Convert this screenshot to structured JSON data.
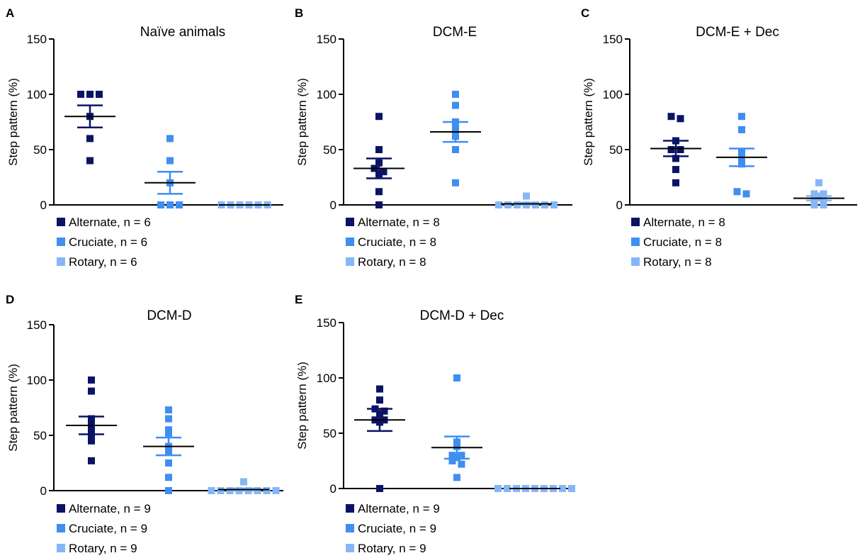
{
  "colors": {
    "Alternate": "#0b1464",
    "Cruciate": "#3f8ef2",
    "Rotary": "#86b6f6"
  },
  "chart_data": [
    {
      "type": "scatter",
      "letter": "A",
      "title": "Naïve animals",
      "ylabel": "Step pattern (%)",
      "ylim": [
        0,
        150
      ],
      "yticks": [
        "0",
        "50",
        "100",
        "150"
      ],
      "categories": [
        "Alternate",
        "Cruciate",
        "Rotary"
      ],
      "series": [
        {
          "name": "Alternate",
          "legend": "Alternate, n = 6",
          "mean": 80,
          "sem": 10,
          "points": [
            100,
            100,
            100,
            80,
            60,
            40
          ]
        },
        {
          "name": "Cruciate",
          "legend": "Cruciate, n = 6",
          "mean": 20,
          "sem": 10,
          "points": [
            60,
            40,
            20,
            0,
            0,
            0
          ]
        },
        {
          "name": "Rotary",
          "legend": "Rotary, n = 6",
          "mean": 0,
          "sem": 0,
          "points": [
            0,
            0,
            0,
            0,
            0,
            0
          ]
        }
      ]
    },
    {
      "type": "scatter",
      "letter": "B",
      "title": "DCM-E",
      "ylabel": "Step pattern (%)",
      "ylim": [
        0,
        150
      ],
      "yticks": [
        "0",
        "50",
        "100",
        "150"
      ],
      "categories": [
        "Alternate",
        "Cruciate",
        "Rotary"
      ],
      "series": [
        {
          "name": "Alternate",
          "legend": "Alternate, n = 8",
          "mean": 33,
          "sem": 9,
          "points": [
            80,
            50,
            38,
            33,
            30,
            28,
            12,
            0
          ]
        },
        {
          "name": "Cruciate",
          "legend": "Cruciate, n = 8",
          "mean": 66,
          "sem": 9,
          "points": [
            100,
            90,
            75,
            70,
            68,
            62,
            50,
            20
          ]
        },
        {
          "name": "Rotary",
          "legend": "Rotary, n = 8",
          "mean": 1,
          "sem": 1,
          "points": [
            8,
            0,
            0,
            0,
            0,
            0,
            0,
            0
          ]
        }
      ]
    },
    {
      "type": "scatter",
      "letter": "C",
      "title": "DCM-E + Dec",
      "ylabel": "Step pattern (%)",
      "ylim": [
        0,
        150
      ],
      "yticks": [
        "0",
        "50",
        "100",
        "150"
      ],
      "categories": [
        "Alternate",
        "Cruciate",
        "Rotary"
      ],
      "series": [
        {
          "name": "Alternate",
          "legend": "Alternate, n = 8",
          "mean": 51,
          "sem": 7,
          "points": [
            80,
            78,
            58,
            50,
            50,
            42,
            32,
            20
          ]
        },
        {
          "name": "Cruciate",
          "legend": "Cruciate, n = 8",
          "mean": 43,
          "sem": 8,
          "points": [
            80,
            68,
            48,
            42,
            40,
            37,
            12,
            10
          ]
        },
        {
          "name": "Rotary",
          "legend": "Rotary, n = 8",
          "mean": 6,
          "sem": 2,
          "points": [
            20,
            10,
            10,
            8,
            5,
            2,
            0,
            0
          ]
        }
      ]
    },
    {
      "type": "scatter",
      "letter": "D",
      "title": "DCM-D",
      "ylabel": "Step pattern (%)",
      "ylim": [
        0,
        150
      ],
      "yticks": [
        "0",
        "50",
        "100",
        "150"
      ],
      "categories": [
        "Alternate",
        "Cruciate",
        "Rotary"
      ],
      "series": [
        {
          "name": "Alternate",
          "legend": "Alternate, n = 9",
          "mean": 59,
          "sem": 8,
          "points": [
            100,
            90,
            65,
            60,
            55,
            50,
            48,
            45,
            27
          ]
        },
        {
          "name": "Cruciate",
          "legend": "Cruciate, n = 9",
          "mean": 40,
          "sem": 8,
          "points": [
            73,
            65,
            55,
            52,
            40,
            35,
            25,
            12,
            0
          ]
        },
        {
          "name": "Rotary",
          "legend": "Rotary, n = 9",
          "mean": 1,
          "sem": 1,
          "points": [
            8,
            0,
            0,
            0,
            0,
            0,
            0,
            0,
            0
          ]
        }
      ]
    },
    {
      "type": "scatter",
      "letter": "E",
      "title": "DCM-D + Dec",
      "ylabel": "Step pattern (%)",
      "ylim": [
        0,
        150
      ],
      "yticks": [
        "0",
        "50",
        "100",
        "150"
      ],
      "categories": [
        "Alternate",
        "Cruciate",
        "Rotary"
      ],
      "series": [
        {
          "name": "Alternate",
          "legend": "Alternate, n = 9",
          "mean": 62,
          "sem": 10,
          "points": [
            90,
            80,
            72,
            70,
            67,
            62,
            62,
            60,
            0
          ]
        },
        {
          "name": "Cruciate",
          "legend": "Cruciate, n = 9",
          "mean": 37,
          "sem": 10,
          "points": [
            100,
            42,
            38,
            30,
            30,
            28,
            25,
            22,
            10
          ]
        },
        {
          "name": "Rotary",
          "legend": "Rotary, n = 9",
          "mean": 0,
          "sem": 0,
          "points": [
            0,
            0,
            0,
            0,
            0,
            0,
            0,
            0,
            0
          ]
        }
      ]
    }
  ]
}
